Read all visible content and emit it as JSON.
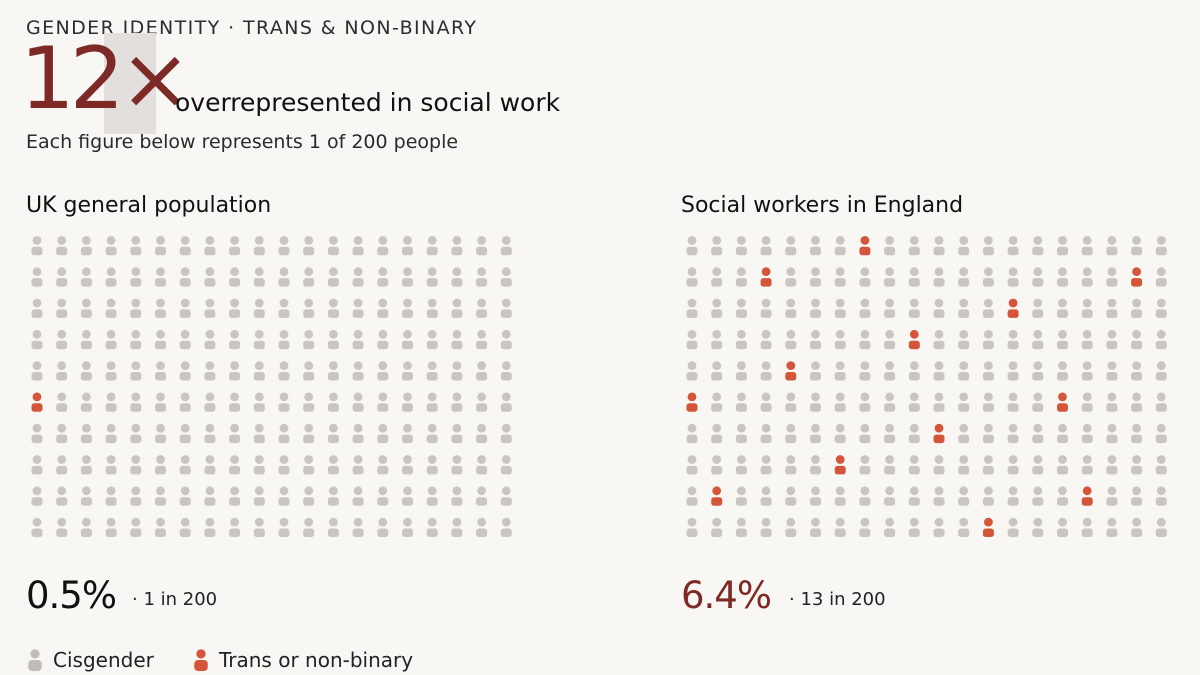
{
  "header": {
    "kicker": "GENDER IDENTITY · TRANS & NON-BINARY",
    "multiplier": "12×",
    "headline": "overrepresented in social work",
    "subtitle": "Each figure below represents 1 of 200 people"
  },
  "colors": {
    "cisgender": "#c9c6c0",
    "trans": "#d4553a",
    "accent": "#7d2a27"
  },
  "chart_data": [
    {
      "type": "waffle",
      "title": "UK general population",
      "rows": 10,
      "cols": 20,
      "total": 200,
      "highlighted": 1,
      "highlight_cells": [
        [
          5,
          0
        ]
      ],
      "percent_label": "0.5%",
      "ratio_label": "· 1 in 200"
    },
    {
      "type": "waffle",
      "title": "Social workers in England",
      "rows": 10,
      "cols": 20,
      "total": 200,
      "highlighted": 13,
      "highlight_cells": [
        [
          0,
          7
        ],
        [
          1,
          3
        ],
        [
          1,
          18
        ],
        [
          2,
          13
        ],
        [
          3,
          9
        ],
        [
          4,
          4
        ],
        [
          5,
          0
        ],
        [
          5,
          15
        ],
        [
          6,
          10
        ],
        [
          7,
          6
        ],
        [
          8,
          1
        ],
        [
          8,
          16
        ],
        [
          9,
          12
        ]
      ],
      "percent_label": "6.4%",
      "ratio_label": "· 13 in 200"
    }
  ],
  "legend": [
    {
      "label": "Cisgender",
      "series": "cisgender"
    },
    {
      "label": "Trans or non-binary",
      "series": "trans"
    }
  ]
}
